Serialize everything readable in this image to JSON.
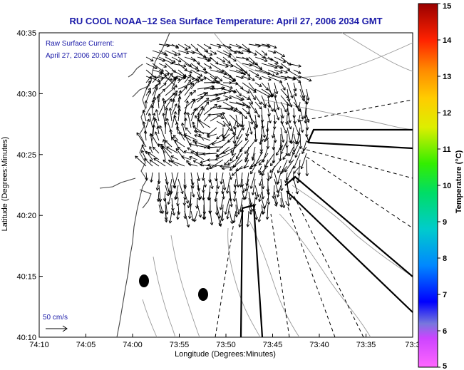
{
  "title": "RU COOL  NOAA–12  Sea Surface Temperature:  April 27, 2006 2034 GMT",
  "current_legend": {
    "line1": "Raw Surface Current:",
    "line2": "April 27, 2006 20:00 GMT",
    "scale_label": "50 cm/s"
  },
  "x_axis": {
    "label": "Longitude (Degrees:Minutes)",
    "ticks": [
      "74:10",
      "74:05",
      "74:00",
      "73:55",
      "73:50",
      "73:45",
      "73:40",
      "73:35",
      "73:3"
    ]
  },
  "y_axis": {
    "label": "Latitude (Degrees:Minutes)",
    "ticks": [
      "40:35",
      "40:30",
      "40:25",
      "40:20",
      "40:15",
      "40:10"
    ]
  },
  "colorbar": {
    "label": "Temperature (°C)",
    "ticks": [
      "15",
      "14",
      "13",
      "12",
      "11",
      "10",
      "9",
      "8",
      "7",
      "6",
      "5"
    ],
    "range": [
      5,
      15
    ]
  }
}
